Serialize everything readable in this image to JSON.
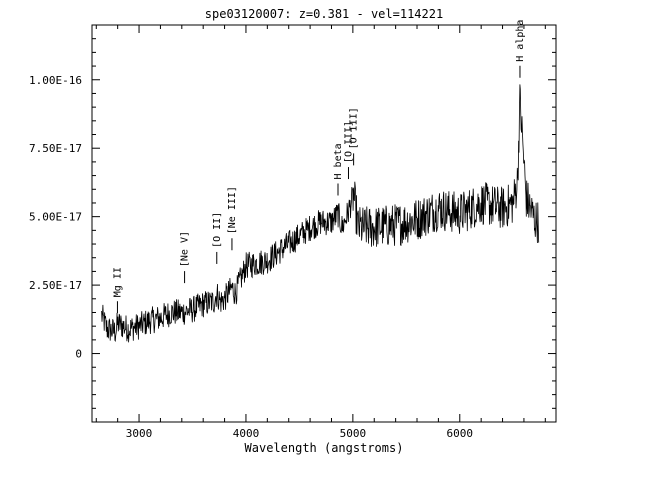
{
  "chart_data": {
    "type": "line",
    "title": "spe03120007: z=0.381 - vel=114221",
    "xlabel": "Wavelength (angstroms)",
    "ylabel": "",
    "xlim": [
      2560,
      6900
    ],
    "ylim": [
      -2.5e-17,
      1.2e-16
    ],
    "x_ticks": [
      3000,
      4000,
      5000,
      6000
    ],
    "x_tick_labels": [
      "3000",
      "4000",
      "5000",
      "6000"
    ],
    "y_ticks": [
      0,
      2.5e-17,
      5e-17,
      7.5e-17,
      1e-16
    ],
    "y_tick_labels": [
      "0",
      "2.50E-17",
      "5.00E-17",
      "7.50E-17",
      "1.00E-16"
    ],
    "grid": false,
    "spectrum_anchors": [
      [
        2650,
        1.4e-17
      ],
      [
        2700,
        9e-18
      ],
      [
        2780,
        8e-18
      ],
      [
        2800,
        1.1e-17
      ],
      [
        2900,
        9e-18
      ],
      [
        3000,
        1e-17
      ],
      [
        3100,
        1.2e-17
      ],
      [
        3200,
        1.3e-17
      ],
      [
        3300,
        1.5e-17
      ],
      [
        3400,
        1.5e-17
      ],
      [
        3500,
        1.6e-17
      ],
      [
        3600,
        1.8e-17
      ],
      [
        3700,
        1.9e-17
      ],
      [
        3727,
        2.2e-17
      ],
      [
        3760,
        1.9e-17
      ],
      [
        3800,
        2e-17
      ],
      [
        3869,
        2.4e-17
      ],
      [
        3900,
        2.2e-17
      ],
      [
        3950,
        2.7e-17
      ],
      [
        4000,
        3.2e-17
      ],
      [
        4100,
        3.3e-17
      ],
      [
        4200,
        3.4e-17
      ],
      [
        4300,
        3.7e-17
      ],
      [
        4400,
        4e-17
      ],
      [
        4500,
        4.3e-17
      ],
      [
        4600,
        4.6e-17
      ],
      [
        4700,
        4.8e-17
      ],
      [
        4800,
        4.8e-17
      ],
      [
        4861,
        5.1e-17
      ],
      [
        4900,
        4.6e-17
      ],
      [
        4959,
        5.2e-17
      ],
      [
        5007,
        5.8e-17
      ],
      [
        5050,
        4.6e-17
      ],
      [
        5200,
        4.6e-17
      ],
      [
        5400,
        4.7e-17
      ],
      [
        5600,
        4.9e-17
      ],
      [
        5800,
        5.3e-17
      ],
      [
        6000,
        5.1e-17
      ],
      [
        6200,
        5.5e-17
      ],
      [
        6400,
        5.3e-17
      ],
      [
        6500,
        5.5e-17
      ],
      [
        6540,
        6.3e-17
      ],
      [
        6563,
        9.3e-17
      ],
      [
        6590,
        7.6e-17
      ],
      [
        6620,
        5.7e-17
      ],
      [
        6700,
        4.9e-17
      ],
      [
        6740,
        4.8e-17
      ]
    ],
    "series": [
      {
        "x_start": 2650,
        "x_end": 6740,
        "noise_amplitude": 5e-18
      }
    ],
    "annotations": [
      {
        "text": "Mg II",
        "x": 2798,
        "y": 1.4e-17
      },
      {
        "text": "[Ne V]",
        "x": 3426,
        "y": 2.5e-17
      },
      {
        "text": "[O II]",
        "x": 3727,
        "y": 3.2e-17
      },
      {
        "text": "[Ne III]",
        "x": 3869,
        "y": 3.7e-17
      },
      {
        "text": "H beta",
        "x": 4861,
        "y": 5.7e-17
      },
      {
        "text": "[O III]",
        "x": 4959,
        "y": 6.3e-17
      },
      {
        "text": "[O III]",
        "x": 5007,
        "y": 6.8e-17
      },
      {
        "text": "H alpha",
        "x": 6563,
        "y": 1e-16
      }
    ]
  }
}
